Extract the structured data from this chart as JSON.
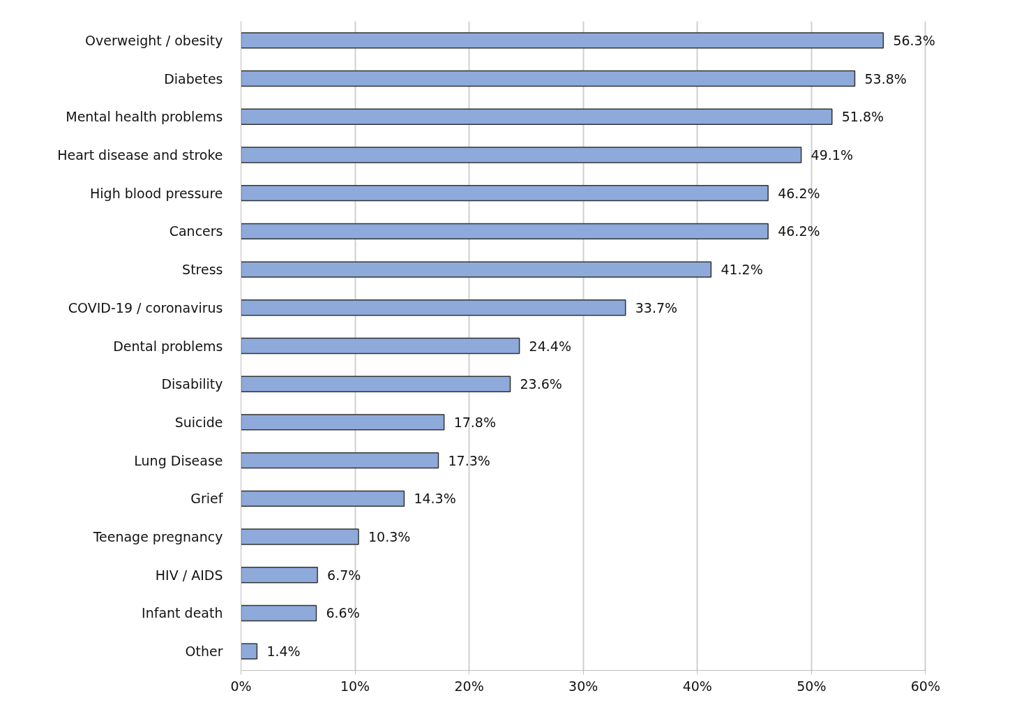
{
  "chart_data": {
    "type": "bar",
    "orientation": "horizontal",
    "categories": [
      "Overweight / obesity",
      "Diabetes",
      "Mental health problems",
      "Heart disease and stroke",
      "High blood pressure",
      "Cancers",
      "Stress",
      "COVID-19 / coronavirus",
      "Dental problems",
      "Disability",
      "Suicide",
      "Lung Disease",
      "Grief",
      "Teenage pregnancy",
      "HIV / AIDS",
      "Infant death",
      "Other"
    ],
    "values": [
      56.3,
      53.8,
      51.8,
      49.1,
      46.2,
      46.2,
      41.2,
      33.7,
      24.4,
      23.6,
      17.8,
      17.3,
      14.3,
      10.3,
      6.7,
      6.6,
      1.4
    ],
    "value_labels": [
      "56.3%",
      "53.8%",
      "51.8%",
      "49.1%",
      "46.2%",
      "46.2%",
      "41.2%",
      "33.7%",
      "24.4%",
      "23.6%",
      "17.8%",
      "17.3%",
      "14.3%",
      "10.3%",
      "6.7%",
      "6.6%",
      "1.4%"
    ],
    "color": "#8eaadb",
    "xlim": [
      0,
      60
    ],
    "xticks": [
      {
        "value": 0,
        "label": "0%"
      },
      {
        "value": 10,
        "label": "10%"
      },
      {
        "value": 20,
        "label": "20%"
      },
      {
        "value": 30,
        "label": "30%"
      },
      {
        "value": 40,
        "label": "40%"
      },
      {
        "value": 50,
        "label": "50%"
      },
      {
        "value": 60,
        "label": "60%"
      }
    ],
    "grid": "x"
  }
}
